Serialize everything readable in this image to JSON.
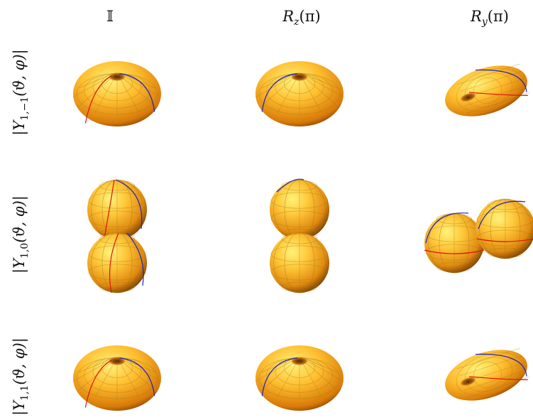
{
  "columns": [
    {
      "id": "identity",
      "label": "𝕀"
    },
    {
      "id": "rz",
      "label": "R_z(π)",
      "base": "R",
      "sub": "z",
      "arg": "(π)"
    },
    {
      "id": "ry",
      "label": "R_y(π)",
      "base": "R",
      "sub": "y",
      "arg": "(π)"
    }
  ],
  "rows": [
    {
      "id": "m-1",
      "label": "|Y_{1,−1}(ϑ, φ)|",
      "base": "|Y",
      "sub": "1,−1",
      "arg": "(ϑ, φ)|",
      "shape": "torus"
    },
    {
      "id": "m0",
      "label": "|Y_{1,0}(ϑ, φ)|",
      "base": "|Y",
      "sub": "1,0",
      "arg": "(ϑ, φ)|",
      "shape": "two-lobes"
    },
    {
      "id": "m1",
      "label": "|Y_{1,1}(ϑ, φ)|",
      "base": "|Y",
      "sub": "1,1",
      "arg": "(ϑ, φ)|",
      "shape": "torus"
    }
  ],
  "colors": {
    "surface_light": "#ffe070",
    "surface_mid": "#f0a020",
    "surface_dark": "#7a3a00",
    "mesh": "#a07a10",
    "meridian_red": "#e01010",
    "meridian_blue": "#2020c0"
  }
}
